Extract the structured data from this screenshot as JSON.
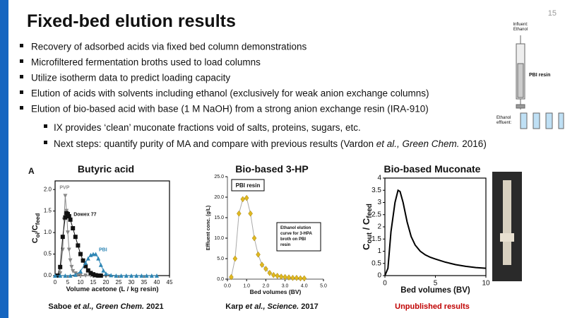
{
  "page_number": "15",
  "header": {
    "title": "Fixed-bed elution results"
  },
  "bullets": [
    "Recovery of adsorbed acids via fixed bed column demonstrations",
    "Microfiltered fermentation broths used to load columns",
    "Utilize isotherm data to predict loading capacity",
    "Elution of acids with solvents including ethanol (exclusively for weak anion exchange columns)",
    "Elution of bio-based acid with base (1 M NaOH) from a strong anion exchange resin (IRA-910)"
  ],
  "sub_bullets": [
    [
      {
        "text": "IX provides ‘clean’ muconate fractions void of salts, proteins, sugars, etc."
      }
    ],
    [
      {
        "text": "Next steps: quantify purity of MA and compare with previous results ("
      },
      {
        "text": "Vardon "
      },
      {
        "text": "et al., Green Chem.",
        "italic": true
      },
      {
        "text": " 2016)"
      }
    ]
  ],
  "diagram": {
    "influent": [
      "Influent:",
      "Ethanol"
    ],
    "resin": "PBI resin",
    "effluent": [
      "Ethanol",
      "effluent:"
    ]
  },
  "chart_data": [
    {
      "type": "line",
      "title": "Butyric acid",
      "panel_label": "A",
      "frame": true,
      "xlabel": "Volume acetone (L / kg resin)",
      "ylabel_parts": [
        "C",
        "oi",
        "/C",
        "feed"
      ],
      "xlim": [
        0,
        45
      ],
      "xticks": [
        0,
        5,
        10,
        15,
        20,
        25,
        30,
        35,
        40,
        45
      ],
      "ylim": [
        0,
        2.2
      ],
      "yticks": [
        {
          "value": 0,
          "label": "0.0"
        },
        {
          "value": 0.5,
          "label": "0.5"
        },
        {
          "value": 1,
          "label": "1.0"
        },
        {
          "value": 1.5,
          "label": "1.5"
        },
        {
          "value": 2,
          "label": "2.0"
        }
      ],
      "series": [
        {
          "name": "PVP",
          "color": "#888888",
          "marker": "triangle-down",
          "x": [
            1,
            2,
            3,
            3.5,
            4,
            4.5,
            5,
            5.5,
            6,
            6.5,
            7,
            8,
            9,
            10,
            12,
            14,
            16
          ],
          "values": [
            0,
            0.05,
            0.6,
            1.3,
            1.85,
            1.5,
            1,
            0.6,
            0.35,
            0.2,
            0.1,
            0.05,
            0.02,
            0.01,
            0,
            0,
            0
          ]
        },
        {
          "name": "Dowex 77",
          "color": "#111111",
          "marker": "square",
          "x": [
            1,
            2,
            3,
            4,
            4.5,
            5,
            5.5,
            6,
            7,
            8,
            9,
            10,
            11,
            12,
            13,
            14,
            15,
            16,
            17,
            18
          ],
          "values": [
            0,
            0.2,
            0.9,
            1.35,
            1.45,
            1.43,
            1.38,
            1.3,
            1.1,
            0.9,
            0.7,
            0.5,
            0.35,
            0.22,
            0.12,
            0.06,
            0.03,
            0.01,
            0,
            0
          ]
        },
        {
          "name": "PBI",
          "color": "#2e86b5",
          "marker": "triangle-up",
          "x": [
            0,
            2,
            4,
            6,
            8,
            10,
            12,
            13,
            14,
            15,
            16,
            17,
            18,
            19,
            20,
            22,
            24,
            26,
            28,
            30,
            32,
            34,
            36,
            38,
            40
          ],
          "values": [
            0,
            0,
            0,
            0,
            0.02,
            0.1,
            0.3,
            0.4,
            0.48,
            0.5,
            0.5,
            0.4,
            0.25,
            0.12,
            0.05,
            0.01,
            0,
            0,
            0,
            0,
            0,
            0,
            0,
            0,
            0
          ]
        }
      ],
      "caption": [
        {
          "text": "Saboe "
        },
        {
          "text": "et al., Green Chem.",
          "italic": true
        },
        {
          "text": " 2021"
        }
      ]
    },
    {
      "type": "line",
      "title": "Bio-based 3-HP",
      "inset_label": "PBI resin",
      "annotation": [
        "Ethanol elution",
        "curve for 3-HPA",
        "broth on PBI",
        "resin"
      ],
      "xlabel": "Bed volumes (BV)",
      "ylabel": "Effluent conc. (g/L)",
      "xlim": [
        0,
        5
      ],
      "xticks": [
        {
          "value": 0,
          "label": "0.0"
        },
        {
          "value": 1,
          "label": "1.0"
        },
        {
          "value": 2,
          "label": "2.0"
        },
        {
          "value": 3,
          "label": "3.0"
        },
        {
          "value": 4,
          "label": "4.0"
        },
        {
          "value": 5,
          "label": "5.0"
        }
      ],
      "ylim": [
        0,
        25
      ],
      "yticks": [
        {
          "value": 0,
          "label": "0.0"
        },
        {
          "value": 5,
          "label": "5.0"
        },
        {
          "value": 10,
          "label": "10.0"
        },
        {
          "value": 15,
          "label": "15.0"
        },
        {
          "value": 20,
          "label": "20.0"
        },
        {
          "value": 25,
          "label": "25.0"
        }
      ],
      "series": [
        {
          "color": "#e0b820",
          "line_color": "#aaaaaa",
          "marker": "diamond",
          "x": [
            0.2,
            0.4,
            0.6,
            0.8,
            1,
            1.2,
            1.4,
            1.6,
            1.8,
            2,
            2.2,
            2.4,
            2.6,
            2.8,
            3,
            3.2,
            3.4,
            3.6,
            3.8,
            4
          ],
          "values": [
            0.5,
            5,
            16,
            19.5,
            19.8,
            16,
            10,
            6,
            3.5,
            2.5,
            1.5,
            1,
            0.8,
            0.6,
            0.5,
            0.4,
            0.3,
            0.3,
            0.2,
            0.2
          ]
        }
      ],
      "caption": [
        {
          "text": "Karp "
        },
        {
          "text": "et al., Science.",
          "italic": true
        },
        {
          "text": " 2017"
        }
      ]
    },
    {
      "type": "line",
      "title": "Bio-based Muconate",
      "frame": true,
      "xlabel": "Bed volumes (BV)",
      "ylabel_parts": [
        "C",
        "out",
        " / C",
        "feed"
      ],
      "xlim": [
        0,
        10
      ],
      "xticks": [
        0,
        5,
        10
      ],
      "ylim": [
        0,
        4
      ],
      "yticks": [
        0,
        0.5,
        1,
        1.5,
        2,
        2.5,
        3,
        3.5,
        4
      ],
      "series": [
        {
          "color": "#000000",
          "x": [
            0,
            0.3,
            0.6,
            1,
            1.3,
            1.5,
            1.8,
            2.2,
            2.6,
            3,
            3.5,
            4,
            4.5,
            5,
            6,
            7,
            8,
            9,
            10
          ],
          "values": [
            0,
            0.3,
            1.8,
            3,
            3.5,
            3.45,
            3,
            2.2,
            1.6,
            1.25,
            1,
            0.85,
            0.75,
            0.68,
            0.55,
            0.45,
            0.38,
            0.33,
            0.3
          ]
        }
      ],
      "caption": [
        {
          "text": "Unpublished results",
          "color": "#c00000"
        }
      ]
    }
  ]
}
